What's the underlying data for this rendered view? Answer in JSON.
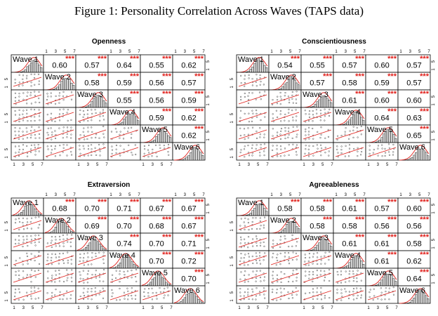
{
  "figure_title": "Figure 1: Personality Correlation Across Waves (TAPS data)",
  "chart_data": [
    {
      "type": "scatter-matrix",
      "title": "Openness",
      "variables": [
        "Wave 1",
        "Wave 2",
        "Wave 3",
        "Wave 4",
        "Wave 5",
        "Wave 6"
      ],
      "tick_labels": [
        "1",
        "3",
        "5",
        "7"
      ],
      "significance": "***",
      "correlations": [
        [
          null,
          0.6,
          0.57,
          0.64,
          0.55,
          0.62
        ],
        [
          null,
          null,
          0.58,
          0.59,
          0.56,
          0.57
        ],
        [
          null,
          null,
          null,
          0.55,
          0.56,
          0.59
        ],
        [
          null,
          null,
          null,
          null,
          0.59,
          0.62
        ],
        [
          null,
          null,
          null,
          null,
          null,
          0.62
        ]
      ]
    },
    {
      "type": "scatter-matrix",
      "title": "Conscientiousness",
      "variables": [
        "Wave 1",
        "Wave 2",
        "Wave 3",
        "Wave 4",
        "Wave 5",
        "Wave 6"
      ],
      "tick_labels": [
        "1",
        "3",
        "5",
        "7"
      ],
      "significance": "***",
      "correlations": [
        [
          null,
          0.54,
          0.55,
          0.57,
          0.6,
          0.57
        ],
        [
          null,
          null,
          0.57,
          0.58,
          0.59,
          0.57
        ],
        [
          null,
          null,
          null,
          0.61,
          0.6,
          0.6
        ],
        [
          null,
          null,
          null,
          null,
          0.64,
          0.63
        ],
        [
          null,
          null,
          null,
          null,
          null,
          0.65
        ]
      ]
    },
    {
      "type": "scatter-matrix",
      "title": "Extraversion",
      "variables": [
        "Wave 1",
        "Wave 2",
        "Wave 3",
        "Wave 4",
        "Wave 5",
        "Wave 6"
      ],
      "tick_labels": [
        "1",
        "3",
        "5",
        "7"
      ],
      "significance": "***",
      "correlations": [
        [
          null,
          0.68,
          0.7,
          0.71,
          0.67,
          0.67
        ],
        [
          null,
          null,
          0.69,
          0.7,
          0.68,
          0.67
        ],
        [
          null,
          null,
          null,
          0.74,
          0.7,
          0.71
        ],
        [
          null,
          null,
          null,
          null,
          0.7,
          0.72
        ],
        [
          null,
          null,
          null,
          null,
          null,
          0.7
        ]
      ]
    },
    {
      "type": "scatter-matrix",
      "title": "Agreeableness",
      "variables": [
        "Wave 1",
        "Wave 2",
        "Wave 3",
        "Wave 4",
        "Wave 5",
        "Wave 6"
      ],
      "tick_labels": [
        "1",
        "3",
        "5",
        "7"
      ],
      "significance": "***",
      "correlations": [
        [
          null,
          0.58,
          0.58,
          0.61,
          0.57,
          0.6
        ],
        [
          null,
          null,
          0.58,
          0.58,
          0.56,
          0.56
        ],
        [
          null,
          null,
          null,
          0.61,
          0.61,
          0.58
        ],
        [
          null,
          null,
          null,
          null,
          0.61,
          0.62
        ],
        [
          null,
          null,
          null,
          null,
          null,
          0.64
        ]
      ]
    }
  ]
}
